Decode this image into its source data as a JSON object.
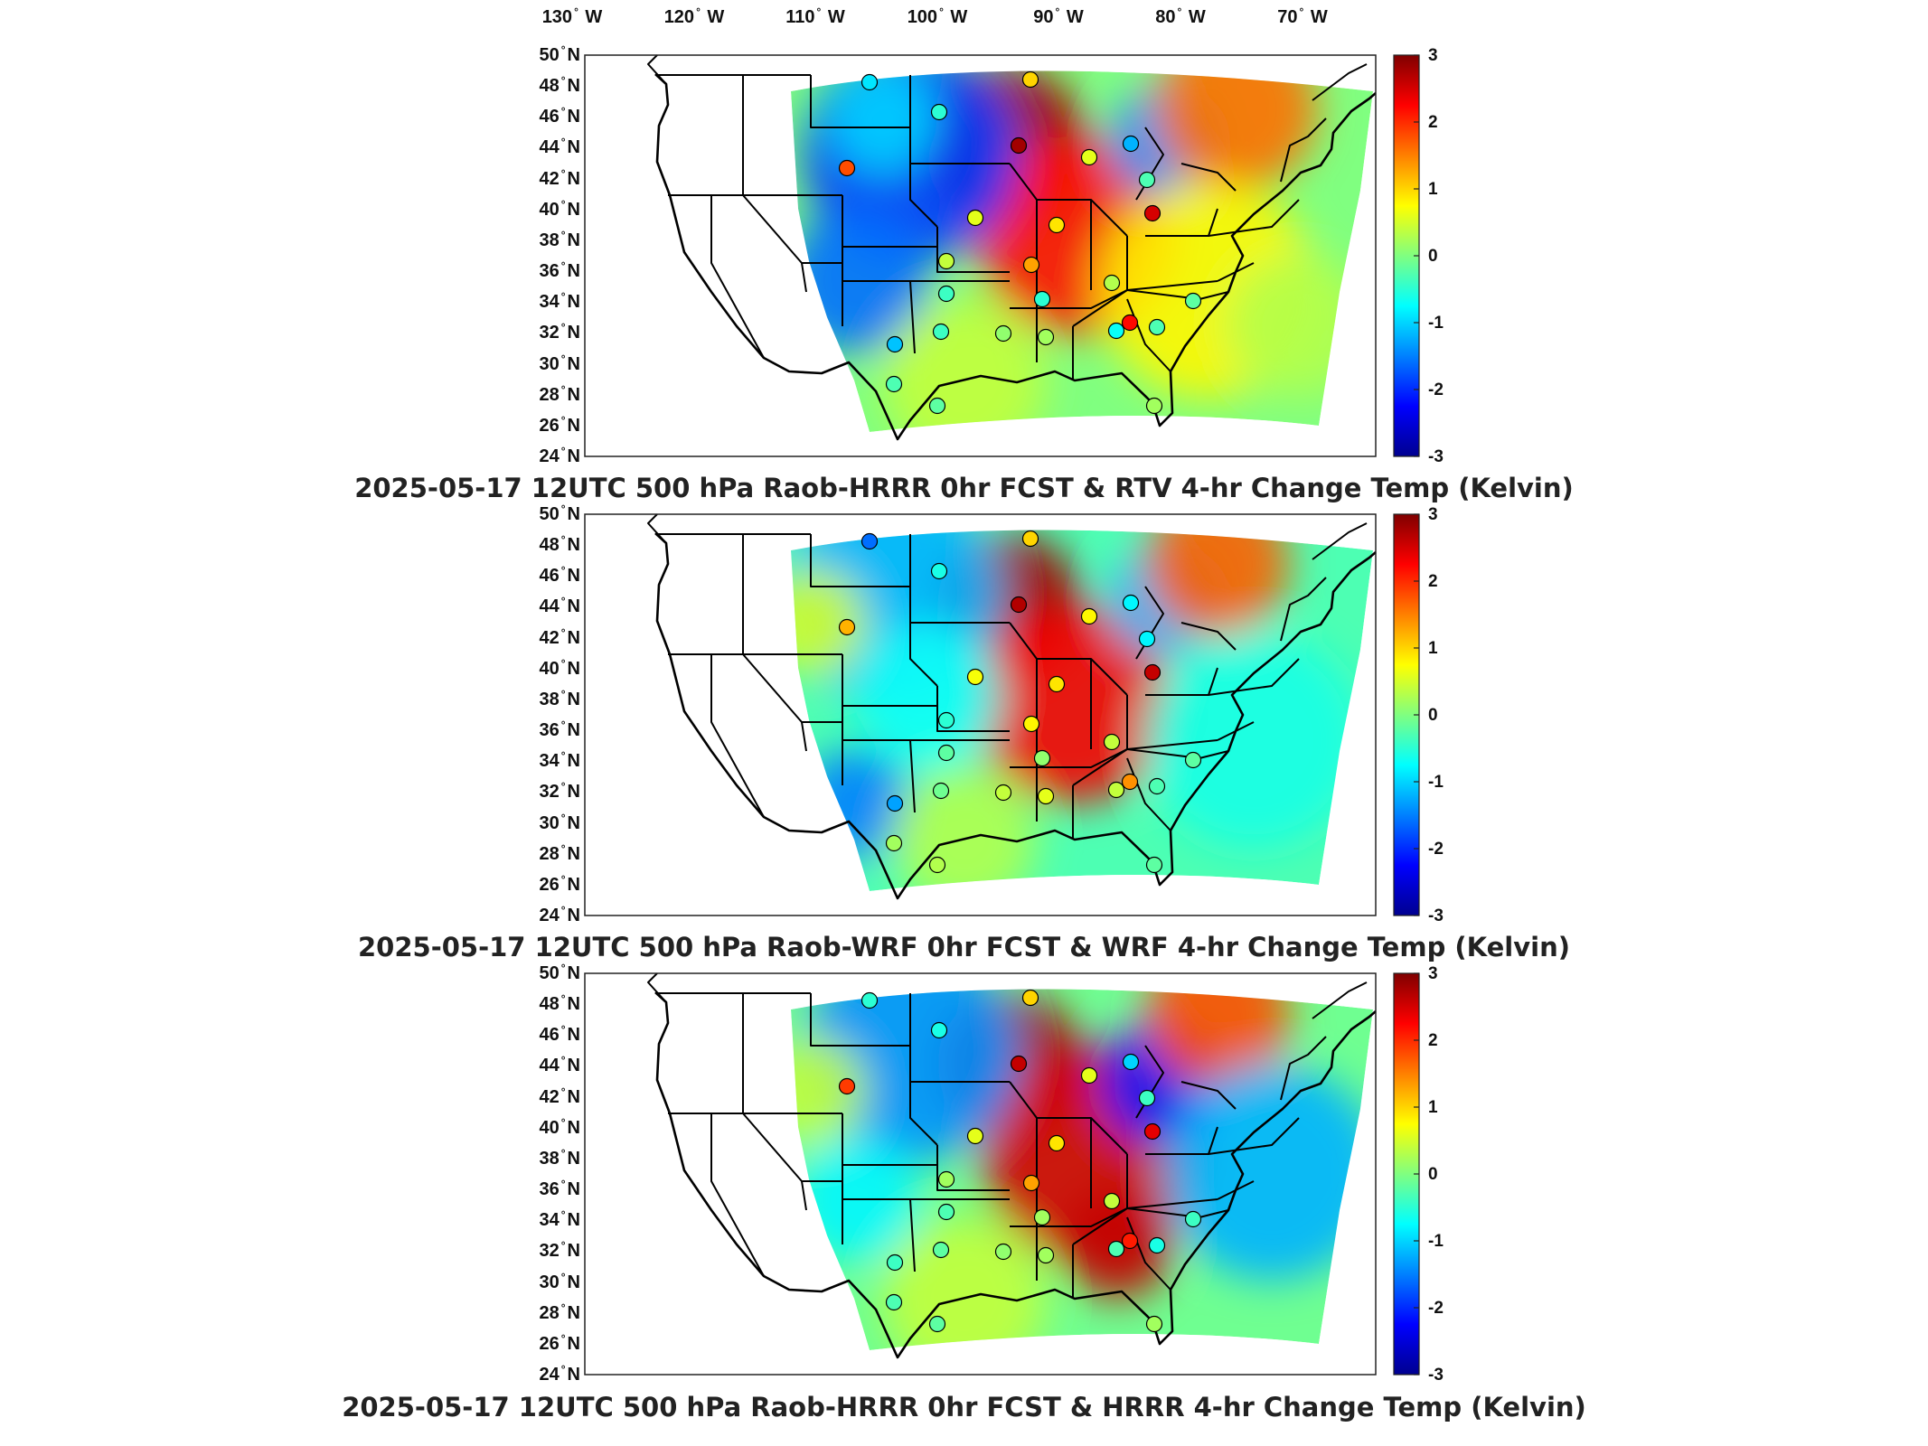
{
  "longitude_ticks": [
    "130",
    "120",
    "110",
    "100",
    "90",
    "80",
    "70"
  ],
  "longitude_suffix": "W",
  "latitude_ticks": [
    "50",
    "48",
    "46",
    "44",
    "42",
    "40",
    "38",
    "36",
    "34",
    "32",
    "30",
    "28",
    "26",
    "24"
  ],
  "latitude_suffix": "N",
  "colorbar": {
    "ticks": [
      "3",
      "2",
      "1",
      "0",
      "-1",
      "-2",
      "-3"
    ],
    "colors": [
      "#00008f",
      "#0000ff",
      "#0080ff",
      "#00ffff",
      "#80ff80",
      "#ffff00",
      "#ff8000",
      "#ff0000",
      "#800000"
    ],
    "range": [
      -3,
      3
    ]
  },
  "panels": [
    {
      "title": "2025-05-17 12UTC 500 hPa Raob-HRRR 0hr FCST & RTV 4-hr Change Temp (Kelvin)"
    },
    {
      "title": "2025-05-17 12UTC 500 hPa Raob-WRF 0hr FCST & WRF 4-hr Change Temp (Kelvin)"
    },
    {
      "title": "2025-05-17 12UTC 500 hPa Raob-HRRR 0hr FCST & HRRR 4-hr Change Temp (Kelvin)"
    }
  ]
}
